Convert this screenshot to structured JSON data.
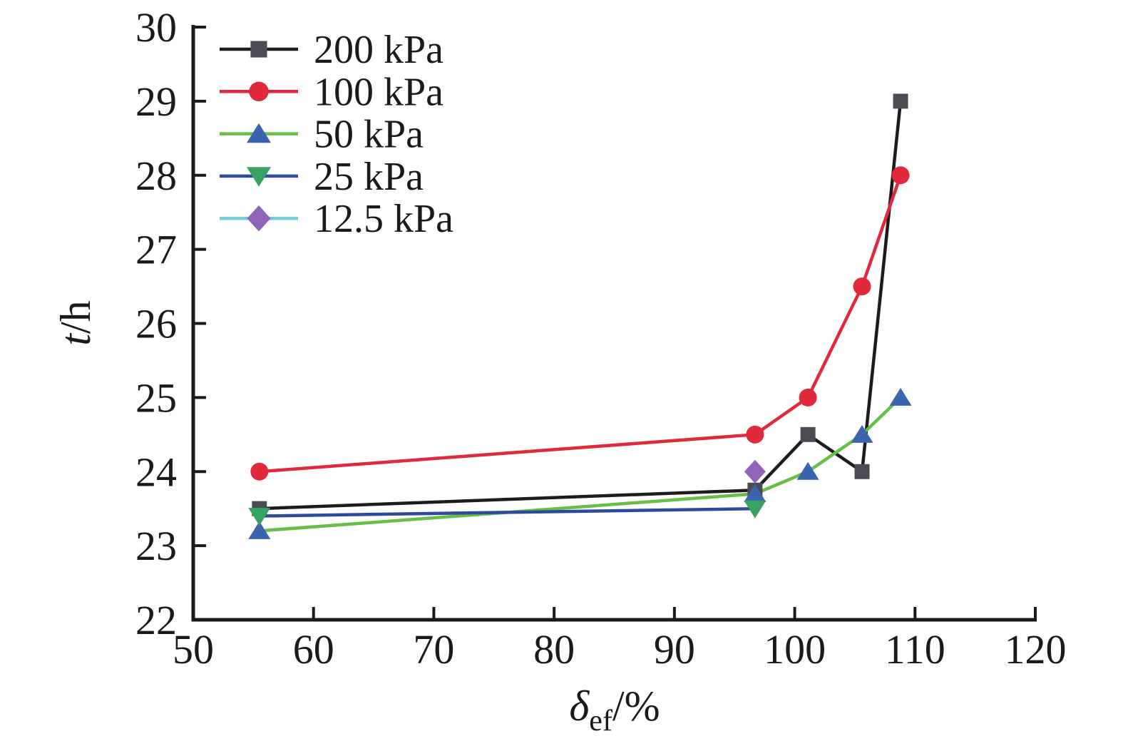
{
  "chart_data": {
    "type": "line",
    "title": "",
    "xlabel": {
      "base": "δ",
      "sub": "ef",
      "suffix": "/%"
    },
    "ylabel": {
      "italic": "t",
      "suffix": "/h"
    },
    "xlim": [
      50,
      120
    ],
    "ylim": [
      22,
      30
    ],
    "x_ticks": [
      50,
      60,
      70,
      80,
      90,
      100,
      110,
      120
    ],
    "y_ticks": [
      22,
      23,
      24,
      25,
      26,
      27,
      28,
      29,
      30
    ],
    "grid": false,
    "legend_position": "top-left-inside",
    "axis_color": "#1a1a1a",
    "series": [
      {
        "name": "200 kPa",
        "line_color": "#1c1c1c",
        "marker": "square",
        "marker_color": "#4b4b54",
        "points": [
          [
            55.5,
            23.5
          ],
          [
            96.7,
            23.75
          ],
          [
            101.1,
            24.5
          ],
          [
            105.6,
            24.0
          ],
          [
            108.8,
            29.0
          ]
        ]
      },
      {
        "name": "100 kPa",
        "line_color": "#e0293a",
        "marker": "circle",
        "marker_color": "#e0293a",
        "points": [
          [
            55.5,
            24.0
          ],
          [
            96.7,
            24.5
          ],
          [
            101.1,
            25.0
          ],
          [
            105.6,
            26.5
          ],
          [
            108.8,
            28.0
          ]
        ]
      },
      {
        "name": "50 kPa",
        "line_color": "#67bf48",
        "marker": "triangle-up",
        "marker_color": "#3b63ae",
        "points": [
          [
            55.5,
            23.2
          ],
          [
            96.7,
            23.7
          ],
          [
            101.1,
            24.0
          ],
          [
            105.6,
            24.5
          ],
          [
            108.8,
            25.0
          ]
        ]
      },
      {
        "name": "25 kPa",
        "line_color": "#2c4b9d",
        "marker": "triangle-down",
        "marker_color": "#37a263",
        "points": [
          [
            55.5,
            23.4
          ],
          [
            96.7,
            23.5
          ]
        ]
      },
      {
        "name": "12.5 kPa",
        "line_color": "#74ccd8",
        "marker": "diamond",
        "marker_color": "#9065b5",
        "points": [
          [
            96.7,
            24.0
          ]
        ]
      }
    ]
  }
}
